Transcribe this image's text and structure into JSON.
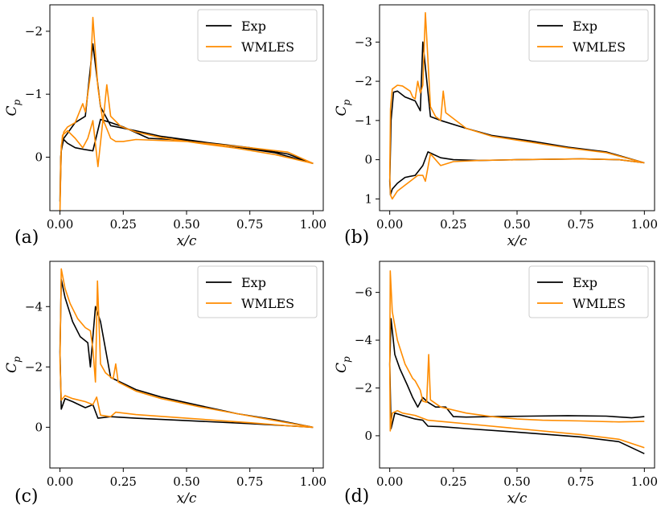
{
  "colors": {
    "exp": "#000000",
    "wmles": "#ff8c00",
    "frame": "#000000"
  },
  "chart_data": [
    {
      "type": "line",
      "panel_label": "(a)",
      "xlabel": "x/c",
      "ylabel": "C_p",
      "ylabel_main": "C",
      "ylabel_sub": "p",
      "xlim": [
        -0.04,
        1.04
      ],
      "ylim_display": [
        0.85,
        -2.42
      ],
      "xticks": [
        0.0,
        0.25,
        0.5,
        0.75,
        1.0
      ],
      "xtick_labels": [
        "0.00",
        "0.25",
        "0.50",
        "0.75",
        "1.00"
      ],
      "yticks": [
        0,
        -1,
        -2
      ],
      "ytick_labels": [
        "0",
        "−1",
        "−2"
      ],
      "legend": [
        "Exp",
        "WMLES"
      ],
      "series": [
        {
          "name": "Exp",
          "x": [
            1.0,
            0.85,
            0.7,
            0.55,
            0.4,
            0.3,
            0.2,
            0.16,
            0.13,
            0.1,
            0.06,
            0.03,
            0.015,
            0.005,
            0.0,
            0.003,
            0.01,
            0.03,
            0.06,
            0.1,
            0.13,
            0.16,
            0.2,
            0.25,
            0.35,
            0.5,
            0.75,
            0.9,
            1.0
          ],
          "y": [
            0.1,
            -0.07,
            -0.16,
            -0.25,
            -0.33,
            -0.42,
            -0.5,
            -0.8,
            -1.8,
            -0.65,
            -0.55,
            -0.38,
            -0.3,
            -0.1,
            0.7,
            0.0,
            -0.3,
            -0.22,
            -0.15,
            -0.12,
            -0.1,
            -0.6,
            -0.55,
            -0.48,
            -0.3,
            -0.27,
            -0.15,
            -0.05,
            0.1
          ]
        },
        {
          "name": "WMLES",
          "x": [
            1.0,
            0.85,
            0.7,
            0.55,
            0.4,
            0.3,
            0.24,
            0.2,
            0.185,
            0.17,
            0.15,
            0.13,
            0.12,
            0.1,
            0.09,
            0.06,
            0.03,
            0.015,
            0.005,
            0.0,
            0.003,
            0.01,
            0.03,
            0.06,
            0.09,
            0.11,
            0.13,
            0.15,
            0.17,
            0.2,
            0.22,
            0.25,
            0.3,
            0.5,
            0.75,
            0.9,
            1.0
          ],
          "y": [
            0.1,
            -0.04,
            -0.14,
            -0.22,
            -0.31,
            -0.4,
            -0.49,
            -0.65,
            -1.15,
            -0.55,
            -1.1,
            -2.22,
            -1.3,
            -0.72,
            -0.85,
            -0.55,
            -0.48,
            -0.4,
            -0.18,
            0.85,
            0.0,
            -0.35,
            -0.42,
            -0.3,
            -0.15,
            -0.3,
            -0.58,
            0.15,
            -0.6,
            -0.3,
            -0.25,
            -0.25,
            -0.28,
            -0.25,
            -0.15,
            -0.08,
            0.1
          ]
        }
      ]
    },
    {
      "type": "line",
      "panel_label": "(b)",
      "xlabel": "x/c",
      "ylabel": "C_p",
      "ylabel_main": "C",
      "ylabel_sub": "p",
      "xlim": [
        -0.04,
        1.04
      ],
      "ylim_display": [
        1.3,
        -3.95
      ],
      "xticks": [
        0.0,
        0.25,
        0.5,
        0.75,
        1.0
      ],
      "xtick_labels": [
        "0.00",
        "0.25",
        "0.50",
        "0.75",
        "1.00"
      ],
      "yticks": [
        1,
        0,
        -1,
        -2,
        -3
      ],
      "ytick_labels": [
        "1",
        "0",
        "−1",
        "−2",
        "−3"
      ],
      "legend": [
        "Exp",
        "WMLES"
      ],
      "series": [
        {
          "name": "Exp",
          "x": [
            1.0,
            0.85,
            0.7,
            0.55,
            0.4,
            0.3,
            0.2,
            0.16,
            0.13,
            0.12,
            0.1,
            0.06,
            0.03,
            0.015,
            0.005,
            0.0,
            0.003,
            0.01,
            0.03,
            0.06,
            0.1,
            0.13,
            0.15,
            0.2,
            0.25,
            0.35,
            0.5,
            0.75,
            0.9,
            1.0
          ],
          "y": [
            0.08,
            -0.2,
            -0.32,
            -0.48,
            -0.62,
            -0.8,
            -1.0,
            -1.1,
            -3.0,
            -1.25,
            -1.5,
            -1.6,
            -1.75,
            -1.72,
            -1.0,
            0.55,
            0.9,
            0.75,
            0.6,
            0.45,
            0.4,
            0.15,
            -0.2,
            -0.05,
            0.0,
            0.02,
            0.0,
            -0.02,
            0.0,
            0.08
          ]
        },
        {
          "name": "WMLES",
          "x": [
            1.0,
            0.85,
            0.7,
            0.55,
            0.4,
            0.3,
            0.22,
            0.21,
            0.2,
            0.18,
            0.16,
            0.14,
            0.13,
            0.12,
            0.11,
            0.1,
            0.09,
            0.08,
            0.05,
            0.03,
            0.01,
            0.003,
            0.0,
            0.003,
            0.01,
            0.03,
            0.06,
            0.09,
            0.11,
            0.13,
            0.14,
            0.16,
            0.2,
            0.25,
            0.35,
            0.5,
            0.75,
            0.9,
            1.0
          ],
          "y": [
            0.08,
            -0.18,
            -0.3,
            -0.45,
            -0.6,
            -0.8,
            -1.2,
            -1.75,
            -1.0,
            -1.1,
            -1.35,
            -3.75,
            -1.9,
            -1.7,
            -2.0,
            -1.55,
            -1.6,
            -1.75,
            -1.88,
            -1.9,
            -1.8,
            -1.3,
            0.4,
            0.9,
            1.0,
            0.8,
            0.65,
            0.5,
            0.4,
            0.4,
            0.55,
            -0.15,
            0.15,
            0.05,
            0.02,
            0.0,
            -0.02,
            0.0,
            0.08
          ]
        }
      ]
    },
    {
      "type": "line",
      "panel_label": "(c)",
      "xlabel": "x/c",
      "ylabel": "C_p",
      "ylabel_main": "C",
      "ylabel_sub": "p",
      "xlim": [
        -0.04,
        1.04
      ],
      "ylim_display": [
        1.35,
        -5.5
      ],
      "xticks": [
        0.0,
        0.25,
        0.5,
        0.75,
        1.0
      ],
      "xtick_labels": [
        "0.00",
        "0.25",
        "0.50",
        "0.75",
        "1.00"
      ],
      "yticks": [
        0,
        -2,
        -4
      ],
      "ytick_labels": [
        "0",
        "−2",
        "−4"
      ],
      "legend": [
        "Exp",
        "WMLES"
      ],
      "series": [
        {
          "name": "Exp",
          "x": [
            1.0,
            0.85,
            0.7,
            0.55,
            0.4,
            0.3,
            0.2,
            0.16,
            0.14,
            0.12,
            0.11,
            0.08,
            0.05,
            0.02,
            0.005,
            0.0,
            0.005,
            0.02,
            0.05,
            0.1,
            0.13,
            0.15,
            0.2,
            0.3,
            0.5,
            0.75,
            0.9,
            1.0
          ],
          "y": [
            0.0,
            -0.25,
            -0.45,
            -0.72,
            -1.0,
            -1.25,
            -1.65,
            -3.5,
            -4.0,
            -2.0,
            -2.8,
            -3.0,
            -3.5,
            -4.3,
            -4.9,
            -2.5,
            -0.6,
            -0.95,
            -0.85,
            -0.65,
            -0.75,
            -0.3,
            -0.35,
            -0.3,
            -0.22,
            -0.12,
            -0.05,
            0.0
          ]
        },
        {
          "name": "WMLES",
          "x": [
            1.0,
            0.85,
            0.7,
            0.55,
            0.4,
            0.3,
            0.23,
            0.22,
            0.21,
            0.18,
            0.16,
            0.148,
            0.14,
            0.13,
            0.12,
            0.1,
            0.07,
            0.04,
            0.02,
            0.005,
            0.0,
            0.005,
            0.02,
            0.05,
            0.1,
            0.13,
            0.145,
            0.16,
            0.2,
            0.22,
            0.3,
            0.5,
            0.75,
            0.9,
            1.0
          ],
          "y": [
            0.0,
            -0.22,
            -0.45,
            -0.68,
            -0.95,
            -1.2,
            -1.5,
            -2.1,
            -1.6,
            -1.8,
            -2.1,
            -4.85,
            -1.5,
            -2.6,
            -3.2,
            -3.3,
            -3.6,
            -4.1,
            -4.6,
            -5.25,
            -2.2,
            -0.9,
            -1.05,
            -0.95,
            -0.85,
            -0.75,
            -1.0,
            -0.4,
            -0.35,
            -0.5,
            -0.42,
            -0.3,
            -0.15,
            -0.05,
            0.0
          ]
        }
      ]
    },
    {
      "type": "line",
      "panel_label": "(d)",
      "xlabel": "x/c",
      "ylabel": "C_p",
      "ylabel_main": "C",
      "ylabel_sub": "p",
      "xlim": [
        -0.04,
        1.04
      ],
      "ylim_display": [
        1.35,
        -7.3
      ],
      "xticks": [
        0.0,
        0.25,
        0.5,
        0.75,
        1.0
      ],
      "xtick_labels": [
        "0.00",
        "0.25",
        "0.50",
        "0.75",
        "1.00"
      ],
      "yticks": [
        0,
        -2,
        -4,
        -6
      ],
      "ytick_labels": [
        "0",
        "−2",
        "−4",
        "−6"
      ],
      "legend": [
        "Exp",
        "WMLES"
      ],
      "series": [
        {
          "name": "Exp",
          "x": [
            1.0,
            0.95,
            0.85,
            0.7,
            0.55,
            0.4,
            0.3,
            0.25,
            0.22,
            0.18,
            0.15,
            0.13,
            0.11,
            0.09,
            0.07,
            0.04,
            0.02,
            0.005,
            0.0,
            0.005,
            0.02,
            0.05,
            0.1,
            0.13,
            0.15,
            0.2,
            0.3,
            0.5,
            0.75,
            0.9,
            1.0
          ],
          "y": [
            -0.8,
            -0.75,
            -0.82,
            -0.84,
            -0.82,
            -0.8,
            -0.78,
            -0.8,
            -1.2,
            -1.2,
            -1.4,
            -1.6,
            -1.2,
            -1.6,
            -2.1,
            -2.8,
            -3.4,
            -4.9,
            -3.0,
            -0.3,
            -0.95,
            -0.85,
            -0.7,
            -0.65,
            -0.4,
            -0.38,
            -0.3,
            -0.15,
            0.05,
            0.25,
            0.75
          ]
        },
        {
          "name": "WMLES",
          "x": [
            1.0,
            0.9,
            0.75,
            0.6,
            0.5,
            0.4,
            0.3,
            0.2,
            0.16,
            0.153,
            0.145,
            0.13,
            0.12,
            0.1,
            0.09,
            0.06,
            0.03,
            0.01,
            0.002,
            0.0,
            0.002,
            0.01,
            0.03,
            0.05,
            0.1,
            0.15,
            0.2,
            0.3,
            0.5,
            0.75,
            0.9,
            1.0
          ],
          "y": [
            -0.6,
            -0.58,
            -0.62,
            -0.65,
            -0.7,
            -0.8,
            -0.95,
            -1.2,
            -1.5,
            -3.4,
            -1.4,
            -1.45,
            -1.9,
            -2.3,
            -2.4,
            -3.0,
            -4.0,
            -5.2,
            -6.9,
            -3.0,
            -0.2,
            -0.95,
            -1.05,
            -0.95,
            -0.85,
            -0.65,
            -0.6,
            -0.5,
            -0.3,
            -0.05,
            0.15,
            0.5
          ]
        }
      ]
    }
  ]
}
